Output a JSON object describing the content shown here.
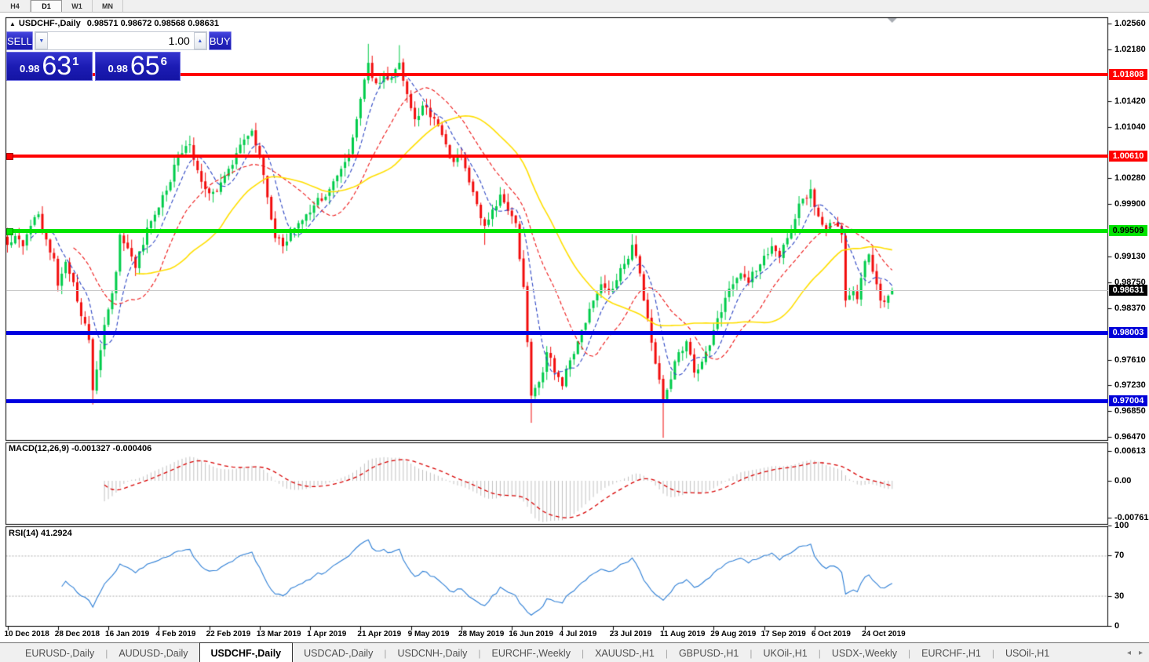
{
  "timeframe_bar": {
    "buttons": [
      {
        "label": "H4",
        "active": false
      },
      {
        "label": "D1",
        "active": true
      },
      {
        "label": "W1",
        "active": false
      },
      {
        "label": "MN",
        "active": false
      }
    ]
  },
  "chart_header": {
    "collapse_icon": "▲",
    "symbol": "USDCHF-,Daily",
    "ohlc": "0.98571 0.98672 0.98568 0.98631"
  },
  "trade_panel": {
    "sell_label": "SELL",
    "buy_label": "BUY",
    "volume": "1.00",
    "spin_down": "▼",
    "spin_up": "▲",
    "sell_price": {
      "prefix": "0.98",
      "big": "63",
      "sup": "1"
    },
    "buy_price": {
      "prefix": "0.98",
      "big": "65",
      "sup": "6"
    },
    "button_color": "#2727BF",
    "box_color": "#1C1CB4"
  },
  "price_axis": {
    "ticks": [
      "1.02560",
      "1.02180",
      "1.01420",
      "1.01040",
      "1.00280",
      "0.99900",
      "0.99130",
      "0.98750",
      "0.98370",
      "0.97610",
      "0.97230",
      "0.96850",
      "0.96470"
    ]
  },
  "macd_pane": {
    "label": "MACD(12,26,9) -0.001327 -0.000406",
    "ticks": [
      {
        "text": "0.00613",
        "value": 0.00613
      },
      {
        "text": "0.00",
        "value": 0
      },
      {
        "text": "-0.007612",
        "value": -0.007612
      }
    ]
  },
  "rsi_pane": {
    "label": "RSI(14) 41.2924",
    "ticks": [
      {
        "text": "100",
        "value": 100
      },
      {
        "text": "70",
        "value": 70
      },
      {
        "text": "30",
        "value": 30
      },
      {
        "text": "0",
        "value": 0
      }
    ]
  },
  "x_axis": {
    "candles_per_label": 13,
    "labels": [
      "10 Dec 2018",
      "28 Dec 2018",
      "16 Jan 2019",
      "4 Feb 2019",
      "22 Feb 2019",
      "13 Mar 2019",
      "1 Apr 2019",
      "21 Apr 2019",
      "9 May 2019",
      "28 May 2019",
      "16 Jun 2019",
      "4 Jul 2019",
      "23 Jul 2019",
      "11 Aug 2019",
      "29 Aug 2019",
      "17 Sep 2019",
      "6 Oct 2019",
      "24 Oct 2019"
    ]
  },
  "bottom_tabs": {
    "scroll_left": "◂",
    "scroll_right": "▸",
    "tabs": [
      {
        "label": "EURUSD-,Daily",
        "active": false
      },
      {
        "label": "AUDUSD-,Daily",
        "active": false
      },
      {
        "label": "USDCHF-,Daily",
        "active": true
      },
      {
        "label": "USDCAD-,Daily",
        "active": false
      },
      {
        "label": "USDCNH-,Daily",
        "active": false
      },
      {
        "label": "EURCHF-,Weekly",
        "active": false
      },
      {
        "label": "XAUUSD-,H1",
        "active": false
      },
      {
        "label": "GBPUSD-,H1",
        "active": false
      },
      {
        "label": "UKOil-,H1",
        "active": false
      },
      {
        "label": "USDX-,Weekly",
        "active": false
      },
      {
        "label": "EURCHF-,H1",
        "active": false
      },
      {
        "label": "USOil-,H1",
        "active": false
      }
    ]
  },
  "chart_data": {
    "type": "candlestick",
    "symbol": "USDCHF",
    "timeframe": "Daily",
    "visible_candles": 229,
    "seed": 20191105,
    "current_bar": {
      "open": 0.98571,
      "high": 0.98672,
      "low": 0.98568,
      "close": 0.98631
    },
    "price_axis_range": {
      "top": 1.02645,
      "bottom": 0.9642
    },
    "candle_colors": {
      "bull": "#00CC4A",
      "bear": "#F20C0C"
    },
    "close_anchors": [
      [
        0,
        0.993
      ],
      [
        2,
        0.9943
      ],
      [
        4,
        0.9928
      ],
      [
        6,
        0.9958
      ],
      [
        8,
        0.9975
      ],
      [
        10,
        0.9938
      ],
      [
        12,
        0.991
      ],
      [
        13,
        0.987
      ],
      [
        15,
        0.9905
      ],
      [
        17,
        0.9875
      ],
      [
        19,
        0.9825
      ],
      [
        21,
        0.979
      ],
      [
        22,
        0.9716
      ],
      [
        24,
        0.9775
      ],
      [
        26,
        0.9835
      ],
      [
        28,
        0.989
      ],
      [
        29,
        0.9945
      ],
      [
        31,
        0.9925
      ],
      [
        33,
        0.9896
      ],
      [
        35,
        0.993
      ],
      [
        37,
        0.9965
      ],
      [
        39,
        0.9985
      ],
      [
        41,
        1.001
      ],
      [
        43,
        1.0048
      ],
      [
        45,
        1.0065
      ],
      [
        47,
        1.0078
      ],
      [
        49,
        1.004
      ],
      [
        51,
        1.0012
      ],
      [
        53,
        1.0008
      ],
      [
        55,
        1.0022
      ],
      [
        57,
        1.0042
      ],
      [
        59,
        1.0065
      ],
      [
        61,
        1.0085
      ],
      [
        63,
        1.0098
      ],
      [
        65,
        1.006
      ],
      [
        67,
        1.0
      ],
      [
        69,
        0.994
      ],
      [
        71,
        0.9928
      ],
      [
        73,
        0.995
      ],
      [
        75,
        0.9962
      ],
      [
        77,
        0.9975
      ],
      [
        79,
        0.9988
      ],
      [
        81,
        0.9995
      ],
      [
        83,
        1.0012
      ],
      [
        85,
        1.0032
      ],
      [
        87,
        1.0052
      ],
      [
        89,
        1.0088
      ],
      [
        91,
        1.0145
      ],
      [
        93,
        1.0198
      ],
      [
        95,
        1.0168
      ],
      [
        97,
        1.0182
      ],
      [
        99,
        1.0176
      ],
      [
        101,
        1.0198
      ],
      [
        103,
        1.0152
      ],
      [
        105,
        1.0115
      ],
      [
        107,
        1.0135
      ],
      [
        109,
        1.0118
      ],
      [
        111,
        1.0105
      ],
      [
        113,
        1.0078
      ],
      [
        115,
        1.0052
      ],
      [
        117,
        1.006
      ],
      [
        119,
        1.0022
      ],
      [
        121,
        0.999
      ],
      [
        123,
        0.9958
      ],
      [
        125,
        0.9982
      ],
      [
        127,
        1.0004
      ],
      [
        129,
        0.998
      ],
      [
        131,
        0.9962
      ],
      [
        133,
        0.9868
      ],
      [
        135,
        0.9708
      ],
      [
        137,
        0.9728
      ],
      [
        139,
        0.9772
      ],
      [
        141,
        0.9742
      ],
      [
        143,
        0.9722
      ],
      [
        145,
        0.976
      ],
      [
        147,
        0.9788
      ],
      [
        149,
        0.9815
      ],
      [
        151,
        0.9848
      ],
      [
        153,
        0.9872
      ],
      [
        155,
        0.9862
      ],
      [
        157,
        0.9878
      ],
      [
        159,
        0.9902
      ],
      [
        161,
        0.993
      ],
      [
        163,
        0.9888
      ],
      [
        165,
        0.9822
      ],
      [
        167,
        0.9755
      ],
      [
        169,
        0.97
      ],
      [
        171,
        0.9732
      ],
      [
        173,
        0.9772
      ],
      [
        175,
        0.9788
      ],
      [
        177,
        0.9742
      ],
      [
        179,
        0.9758
      ],
      [
        181,
        0.9782
      ],
      [
        183,
        0.9822
      ],
      [
        185,
        0.9852
      ],
      [
        187,
        0.9872
      ],
      [
        189,
        0.9888
      ],
      [
        191,
        0.9874
      ],
      [
        193,
        0.9892
      ],
      [
        195,
        0.9914
      ],
      [
        197,
        0.9928
      ],
      [
        199,
        0.9912
      ],
      [
        201,
        0.994
      ],
      [
        203,
        0.9968
      ],
      [
        205,
        0.9998
      ],
      [
        207,
        1.0012
      ],
      [
        209,
        0.9972
      ],
      [
        211,
        0.9952
      ],
      [
        213,
        0.9962
      ],
      [
        215,
        0.9945
      ],
      [
        216,
        0.9848
      ],
      [
        218,
        0.9862
      ],
      [
        219,
        0.985
      ],
      [
        221,
        0.9906
      ],
      [
        222,
        0.9916
      ],
      [
        224,
        0.9872
      ],
      [
        225,
        0.9848
      ],
      [
        227,
        0.9855
      ],
      [
        228,
        0.98631
      ]
    ],
    "wick_extremes": [
      [
        22,
        "low",
        0.9695
      ],
      [
        93,
        "high",
        1.0226
      ],
      [
        101,
        "high",
        1.0224
      ],
      [
        123,
        "low",
        0.993
      ],
      [
        135,
        "low",
        0.9668
      ],
      [
        161,
        "high",
        0.9946
      ],
      [
        169,
        "low",
        0.9646
      ],
      [
        207,
        "high",
        1.0026
      ],
      [
        226,
        "low",
        0.9838
      ]
    ],
    "hlines": [
      {
        "price": 1.01808,
        "label": "1.01808",
        "color": "#FF0000",
        "thickness": 4,
        "badge_bg": "#FF0000",
        "badge_fg": "#FFFFFF",
        "marker": false
      },
      {
        "price": 1.0061,
        "label": "1.00610",
        "color": "#FF0000",
        "thickness": 4,
        "badge_bg": "#FF0000",
        "badge_fg": "#FFFFFF",
        "marker": true
      },
      {
        "price": 0.99509,
        "label": "0.99509",
        "color": "#00E400",
        "thickness": 5,
        "badge_bg": "#00E400",
        "badge_fg": "#000000",
        "marker": true
      },
      {
        "price": 0.98003,
        "label": "0.98003",
        "color": "#0000E0",
        "thickness": 5,
        "badge_bg": "#0000D8",
        "badge_fg": "#FFFFFF",
        "marker": false
      },
      {
        "price": 0.97004,
        "label": "0.97004",
        "color": "#0000E0",
        "thickness": 5,
        "badge_bg": "#0000D8",
        "badge_fg": "#FFFFFF",
        "marker": false
      }
    ],
    "current_price_line": {
      "price": 0.98631,
      "label": "0.98631",
      "color": "#C8C8C8",
      "badge_bg": "#000000",
      "badge_fg": "#FFFFFF"
    },
    "moving_averages": [
      {
        "name": "fast",
        "period": 7,
        "color": "#2C45C4",
        "dashed": true
      },
      {
        "name": "medium",
        "period": 18,
        "color": "#EE1515",
        "dashed": true
      },
      {
        "name": "slow",
        "period": 34,
        "color": "#FFDF00",
        "dashed": false
      }
    ],
    "macd": {
      "fast": 12,
      "slow": 26,
      "signal_period": 9,
      "histogram_color": "#C2C2C2",
      "signal_color": "#D80000",
      "range": [
        -0.007612,
        0.00613
      ],
      "current_main": -0.001327,
      "current_signal": -0.000406
    },
    "rsi": {
      "period": 14,
      "color": "#2E7FD6",
      "levels": [
        30,
        70
      ],
      "range": [
        0,
        100
      ],
      "current": 41.2924
    }
  }
}
